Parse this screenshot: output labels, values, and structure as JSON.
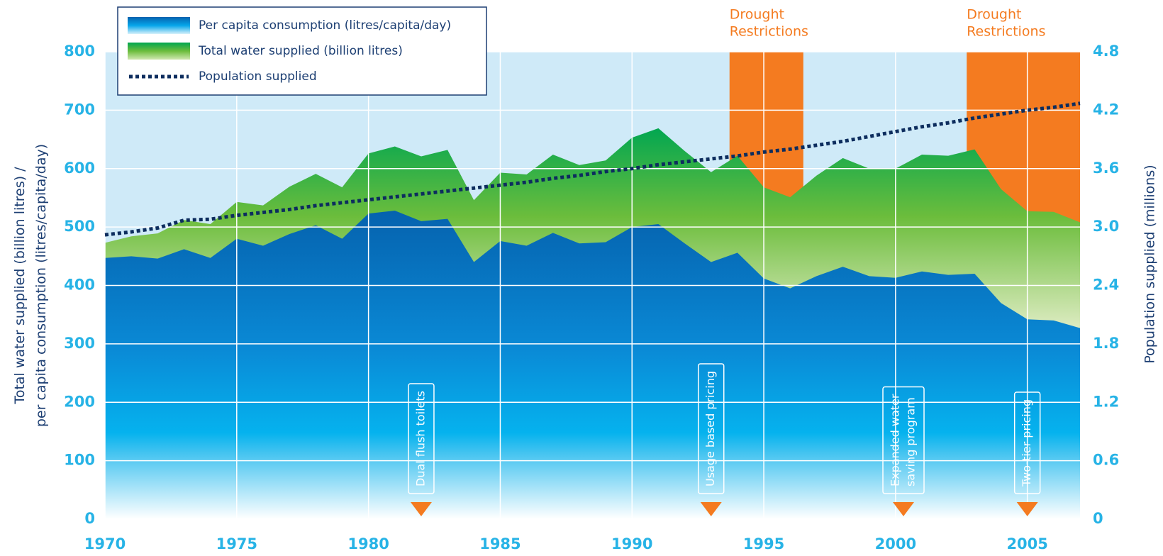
{
  "chart_data": {
    "type": "area",
    "x": [
      1970,
      1971,
      1972,
      1973,
      1974,
      1975,
      1976,
      1977,
      1978,
      1979,
      1980,
      1981,
      1982,
      1983,
      1984,
      1985,
      1986,
      1987,
      1988,
      1989,
      1990,
      1991,
      1992,
      1993,
      1994,
      1995,
      1996,
      1997,
      1998,
      1999,
      2000,
      2001,
      2002,
      2003,
      2004,
      2005,
      2006,
      2007
    ],
    "xlim": [
      1970,
      2007
    ],
    "xticks": [
      1970,
      1975,
      1980,
      1985,
      1990,
      1995,
      2000,
      2005
    ],
    "ylim": [
      0,
      800
    ],
    "yticks": [
      0,
      100,
      200,
      300,
      400,
      500,
      600,
      700,
      800
    ],
    "y2lim": [
      0,
      4.8
    ],
    "y2ticks": [
      0,
      0.6,
      1.2,
      1.8,
      2.4,
      {
        "value": 3,
        "label": "3.0"
      },
      3.6,
      4.2,
      4.8
    ],
    "ylabel": [
      "Total water supplied (billion litres) /",
      "per capita consumption (litres/capita/day)"
    ],
    "y2label": "Population supplied (millions)",
    "grid": true,
    "legend": "upper left",
    "series": [
      {
        "name": "Per capita consumption (litres/capita/day)",
        "type": "area",
        "color": "#0a8ad6",
        "values": [
          447,
          450,
          446,
          462,
          447,
          480,
          468,
          488,
          503,
          480,
          523,
          528,
          510,
          514,
          440,
          476,
          468,
          490,
          472,
          474,
          500,
          505,
          472,
          440,
          456,
          412,
          395,
          416,
          432,
          416,
          413,
          424,
          418,
          420,
          370,
          342,
          340,
          327
        ]
      },
      {
        "name": "Total water supplied (billion litres)",
        "type": "area",
        "color": "#6cbd3c",
        "values": [
          473,
          484,
          489,
          512,
          505,
          543,
          537,
          569,
          591,
          568,
          626,
          638,
          621,
          632,
          546,
          593,
          590,
          624,
          606,
          614,
          653,
          669,
          630,
          594,
          622,
          568,
          551,
          588,
          618,
          600,
          600,
          624,
          622,
          633,
          565,
          527,
          526,
          508
        ]
      },
      {
        "name": "Population supplied",
        "type": "line",
        "axis": "y2",
        "color": "#0d2d5e",
        "style": "dotted",
        "values": [
          2.92,
          2.95,
          2.99,
          3.07,
          3.08,
          3.12,
          3.15,
          3.18,
          3.22,
          3.25,
          3.28,
          3.31,
          3.34,
          3.37,
          3.4,
          3.43,
          3.46,
          3.5,
          3.53,
          3.57,
          3.6,
          3.64,
          3.67,
          3.7,
          3.73,
          3.77,
          3.8,
          3.84,
          3.88,
          3.93,
          3.98,
          4.03,
          4.07,
          4.12,
          4.16,
          4.2,
          4.23,
          4.27
        ]
      }
    ],
    "shaded_periods": [
      {
        "label": [
          "Drought",
          "Restrictions"
        ],
        "start": 1993.7,
        "end": 1996.5,
        "color": "#f47b20"
      },
      {
        "label": [
          "Drought",
          "Restrictions"
        ],
        "start": 2002.7,
        "end": 2007,
        "color": "#f47b20"
      }
    ],
    "annotations": [
      {
        "label": [
          "Dual flush toilets"
        ],
        "x": 1982
      },
      {
        "label": [
          "Usage based pricing"
        ],
        "x": 1993
      },
      {
        "label": [
          "Expanded water",
          "saving program"
        ],
        "x": 2000.3
      },
      {
        "label": [
          "Two-tier pricing"
        ],
        "x": 2005
      }
    ]
  }
}
